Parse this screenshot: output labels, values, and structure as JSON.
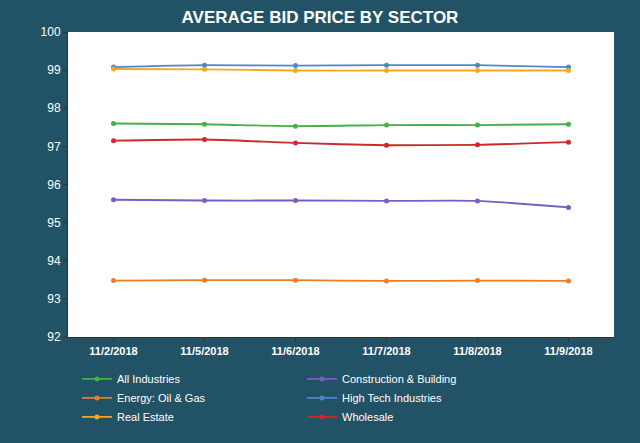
{
  "chart_data": {
    "type": "line",
    "title": "AVERAGE BID PRICE BY SECTOR",
    "categories": [
      "11/2/2018",
      "11/5/2018",
      "11/6/2018",
      "11/7/2018",
      "11/8/2018",
      "11/9/2018"
    ],
    "series": [
      {
        "name": "All Industries",
        "color": "#43b04a",
        "values": [
          97.6,
          97.58,
          97.53,
          97.56,
          97.56,
          97.58
        ]
      },
      {
        "name": "Construction & Building",
        "color": "#7b5cc4",
        "values": [
          95.6,
          95.58,
          95.58,
          95.57,
          95.57,
          95.4
        ]
      },
      {
        "name": "Energy: Oil & Gas",
        "color": "#ec7c26",
        "values": [
          93.48,
          93.49,
          93.49,
          93.47,
          93.48,
          93.47
        ]
      },
      {
        "name": "High Tech Industries",
        "color": "#4a88d0",
        "values": [
          99.08,
          99.13,
          99.12,
          99.13,
          99.13,
          99.08
        ]
      },
      {
        "name": "Real Estate",
        "color": "#f5a81f",
        "values": [
          99.03,
          99.02,
          98.99,
          98.99,
          98.99,
          98.99
        ]
      },
      {
        "name": "Wholesale",
        "color": "#cc2a2a",
        "values": [
          97.15,
          97.18,
          97.09,
          97.03,
          97.04,
          97.11
        ]
      }
    ],
    "ylim": [
      92,
      100
    ],
    "yticks": [
      92,
      93,
      94,
      95,
      96,
      97,
      98,
      99,
      100
    ],
    "grid": false,
    "legend": "bottom",
    "marker": "circle",
    "line_style": "smooth"
  }
}
